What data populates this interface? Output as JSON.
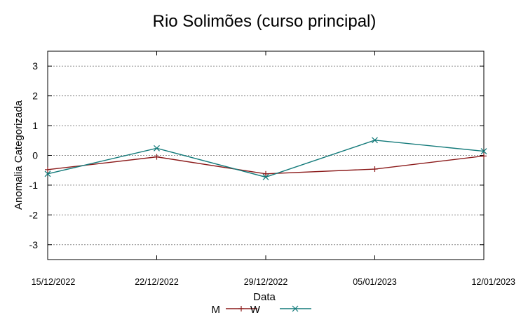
{
  "chart_data": {
    "type": "line",
    "title": "Rio Solimões (curso principal)",
    "xlabel": "Data",
    "ylabel": "Anomalia Categorizada",
    "x": [
      "15/12/2022",
      "22/12/2022",
      "29/12/2022",
      "05/01/2023",
      "12/01/2023"
    ],
    "ylim": [
      -3.5,
      3.5
    ],
    "yticks": [
      -3,
      -2,
      -1,
      0,
      1,
      2,
      3
    ],
    "grid": true,
    "legend_position": "bottom",
    "series": [
      {
        "name": "M",
        "color": "#8b1a1a",
        "marker": "plus",
        "values": [
          -0.48,
          -0.05,
          -0.62,
          -0.46,
          -0.02
        ]
      },
      {
        "name": "W",
        "color": "#137a7a",
        "marker": "cross",
        "values": [
          -0.62,
          0.24,
          -0.73,
          0.51,
          0.14
        ]
      }
    ]
  }
}
